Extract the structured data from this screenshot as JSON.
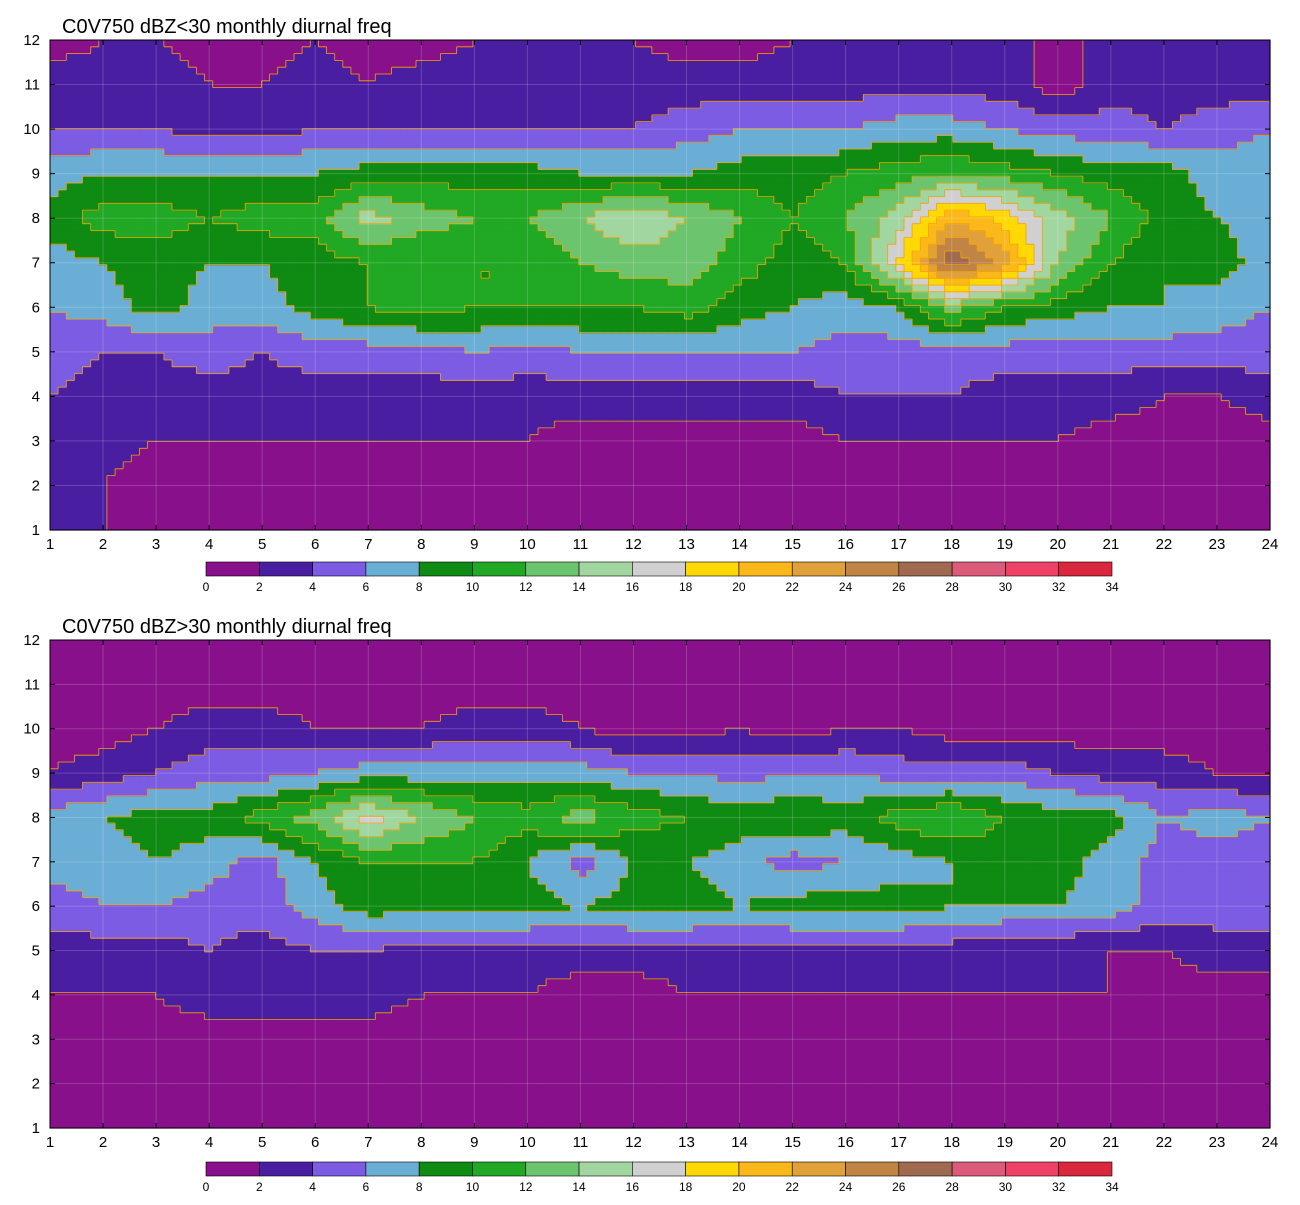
{
  "chart_data": [
    {
      "type": "heatmap",
      "subtype": "filled-contour",
      "title": "C0V750 dBZ<30 monthly diurnal freq",
      "xlabel": "",
      "ylabel": "",
      "x": [
        1,
        2,
        3,
        4,
        5,
        6,
        7,
        8,
        9,
        10,
        11,
        12,
        13,
        14,
        15,
        16,
        17,
        18,
        19,
        20,
        21,
        22,
        23,
        24
      ],
      "y": [
        1,
        2,
        3,
        4,
        5,
        6,
        7,
        8,
        9,
        10,
        11,
        12
      ],
      "xlim": [
        1,
        24
      ],
      "ylim": [
        1,
        12
      ],
      "x_ticks": [
        "1",
        "2",
        "3",
        "4",
        "5",
        "6",
        "7",
        "8",
        "9",
        "10",
        "11",
        "12",
        "13",
        "14",
        "15",
        "16",
        "17",
        "18",
        "19",
        "20",
        "21",
        "22",
        "23",
        "24"
      ],
      "y_ticks": [
        "1",
        "2",
        "3",
        "4",
        "5",
        "6",
        "7",
        "8",
        "9",
        "10",
        "11",
        "12"
      ],
      "grid": true,
      "z_rows_by_y": [
        [
          2,
          2,
          1,
          0,
          0,
          0,
          0,
          0,
          1,
          0,
          0,
          0,
          0,
          0,
          0,
          0,
          0,
          0,
          0,
          0,
          0,
          0,
          0,
          1
        ],
        [
          3,
          2,
          1,
          1,
          1,
          1,
          1,
          1,
          1,
          1,
          1,
          1,
          1,
          1,
          1,
          1,
          1,
          1,
          1,
          2,
          2,
          1,
          1,
          1
        ],
        [
          3,
          3,
          2,
          2,
          2,
          2,
          2,
          2,
          2,
          2,
          1,
          1,
          1,
          1,
          1,
          2,
          2,
          2,
          2,
          2,
          1,
          1,
          1,
          1
        ],
        [
          4,
          3,
          3,
          3,
          3,
          3,
          3,
          3,
          3,
          3,
          3,
          3,
          3,
          3,
          3,
          4,
          4,
          4,
          3,
          3,
          3,
          2,
          2,
          3
        ],
        [
          5,
          4,
          4,
          5,
          4,
          5,
          5,
          5,
          6,
          5,
          6,
          6,
          6,
          6,
          6,
          5,
          5,
          5,
          5,
          5,
          5,
          5,
          5,
          5
        ],
        [
          6,
          7,
          9,
          7,
          7,
          9,
          10,
          11,
          10,
          10,
          10,
          10,
          11,
          9,
          8,
          7,
          8,
          13,
          10,
          9,
          8,
          8,
          7,
          6
        ],
        [
          7,
          8,
          9,
          8,
          8,
          9,
          10,
          10,
          10,
          10,
          12,
          13,
          13,
          11,
          9,
          10,
          18,
          28,
          23,
          14,
          10,
          8,
          9,
          7
        ],
        [
          9,
          11,
          11,
          10,
          11,
          11,
          15,
          13,
          12,
          12,
          14,
          16,
          14,
          12,
          10,
          12,
          15,
          22,
          19,
          15,
          12,
          9,
          8,
          7
        ],
        [
          7,
          8,
          8,
          8,
          8,
          8,
          9,
          9,
          9,
          9,
          8,
          8,
          8,
          9,
          9,
          10,
          11,
          12,
          11,
          10,
          9,
          9,
          7,
          7
        ],
        [
          4,
          4,
          4,
          3,
          3,
          4,
          4,
          4,
          4,
          4,
          4,
          4,
          5,
          6,
          6,
          6,
          7,
          7,
          6,
          5,
          5,
          4,
          5,
          6
        ],
        [
          3,
          3,
          3,
          2,
          2,
          3,
          2,
          3,
          3,
          3,
          3,
          3,
          3,
          3,
          3,
          3,
          3,
          3,
          3,
          1,
          3,
          3,
          3,
          3
        ],
        [
          1,
          2,
          2,
          1,
          1,
          2,
          1,
          1,
          2,
          2,
          2,
          2,
          1,
          1,
          2,
          2,
          2,
          2,
          2,
          2,
          2,
          2,
          2,
          2
        ]
      ]
    },
    {
      "type": "heatmap",
      "subtype": "filled-contour",
      "title": "C0V750 dBZ>30 monthly diurnal freq",
      "xlabel": "",
      "ylabel": "",
      "x": [
        1,
        2,
        3,
        4,
        5,
        6,
        7,
        8,
        9,
        10,
        11,
        12,
        13,
        14,
        15,
        16,
        17,
        18,
        19,
        20,
        21,
        22,
        23,
        24
      ],
      "y": [
        1,
        2,
        3,
        4,
        5,
        6,
        7,
        8,
        9,
        10,
        11,
        12
      ],
      "xlim": [
        1,
        24
      ],
      "ylim": [
        1,
        12
      ],
      "x_ticks": [
        "1",
        "2",
        "3",
        "4",
        "5",
        "6",
        "7",
        "8",
        "9",
        "10",
        "11",
        "12",
        "13",
        "14",
        "15",
        "16",
        "17",
        "18",
        "19",
        "20",
        "21",
        "22",
        "23",
        "24"
      ],
      "y_ticks": [
        "1",
        "2",
        "3",
        "4",
        "5",
        "6",
        "7",
        "8",
        "9",
        "10",
        "11",
        "12"
      ],
      "grid": true,
      "z_rows_by_y": [
        [
          1,
          1,
          1,
          1,
          1,
          1,
          1,
          1,
          1,
          1,
          1,
          1,
          1,
          1,
          1,
          1,
          1,
          1,
          1,
          1,
          1,
          1,
          1,
          1
        ],
        [
          1,
          1,
          1,
          1,
          1,
          1,
          1,
          1,
          1,
          1,
          1,
          1,
          1,
          1,
          1,
          1,
          1,
          1,
          1,
          1,
          1,
          1,
          1,
          1
        ],
        [
          1,
          1,
          1,
          1,
          1,
          1,
          1,
          1,
          1,
          1,
          1,
          1,
          1,
          1,
          1,
          1,
          1,
          1,
          1,
          1,
          1,
          1,
          1,
          1
        ],
        [
          2,
          2,
          2,
          3,
          3,
          3,
          3,
          2,
          2,
          2,
          1,
          1,
          2,
          2,
          2,
          2,
          2,
          2,
          2,
          2,
          2,
          1,
          1,
          1
        ],
        [
          3,
          3,
          3,
          4,
          3,
          4,
          4,
          3,
          3,
          3,
          3,
          3,
          3,
          3,
          3,
          3,
          3,
          3,
          2,
          2,
          2,
          2,
          3,
          3
        ],
        [
          5,
          6,
          6,
          5,
          5,
          7,
          9,
          9,
          9,
          9,
          8,
          9,
          9,
          8,
          9,
          9,
          9,
          8,
          8,
          8,
          7,
          5,
          5,
          5
        ],
        [
          7,
          7,
          8,
          7,
          5,
          8,
          10,
          10,
          10,
          8,
          5,
          8,
          8,
          7,
          5,
          6,
          7,
          8,
          9,
          9,
          7,
          5,
          5,
          5
        ],
        [
          7,
          8,
          9,
          9,
          11,
          13,
          17,
          14,
          12,
          11,
          13,
          11,
          10,
          9,
          10,
          9,
          11,
          12,
          10,
          9,
          9,
          6,
          7,
          6
        ],
        [
          2,
          3,
          4,
          5,
          5,
          6,
          7,
          7,
          7,
          7,
          7,
          6,
          6,
          5,
          6,
          6,
          5,
          5,
          5,
          4,
          3,
          3,
          2,
          2
        ],
        [
          1,
          1,
          2,
          3,
          3,
          2,
          2,
          2,
          3,
          3,
          2,
          1,
          1,
          2,
          1,
          2,
          2,
          1,
          1,
          1,
          1,
          1,
          1,
          1
        ],
        [
          1,
          1,
          1,
          1,
          1,
          1,
          1,
          1,
          1,
          1,
          1,
          1,
          1,
          1,
          1,
          1,
          1,
          1,
          1,
          1,
          1,
          1,
          1,
          1
        ],
        [
          1,
          1,
          1,
          1,
          1,
          1,
          1,
          1,
          1,
          1,
          1,
          1,
          1,
          1,
          1,
          1,
          1,
          1,
          1,
          1,
          1,
          1,
          1,
          1
        ]
      ]
    }
  ],
  "colorbar": {
    "levels": [
      0,
      2,
      4,
      6,
      8,
      10,
      12,
      14,
      16,
      18,
      20,
      22,
      24,
      26,
      28,
      30,
      32,
      34
    ],
    "tick_labels": [
      "0",
      "2",
      "4",
      "6",
      "8",
      "10",
      "12",
      "14",
      "16",
      "18",
      "20",
      "22",
      "24",
      "26",
      "28",
      "30",
      "32",
      "34"
    ],
    "colors": [
      "#88108a",
      "#4a1ea1",
      "#7b5ce3",
      "#6aaed6",
      "#0f8a12",
      "#21a824",
      "#6dc46f",
      "#a2d6a1",
      "#d0d0d0",
      "#ffd806",
      "#fbb81a",
      "#e0a13a",
      "#c08446",
      "#a06a51",
      "#dc5b7b",
      "#ee4166",
      "#d9273d"
    ]
  },
  "contour_color": "#f5a300"
}
